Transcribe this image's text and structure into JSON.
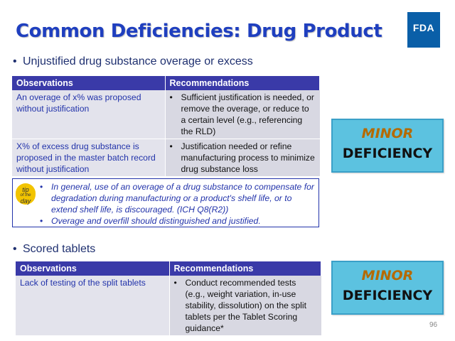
{
  "title": "Common Deficiencies: Drug Product",
  "logo": "FDA",
  "section1": {
    "bullet": "Unjustified drug substance overage or excess",
    "headers": [
      "Observations",
      "Recommendations"
    ],
    "rows": [
      {
        "observation": "An overage of x% was proposed without justification",
        "recommendation": "Sufficient justification is needed, or remove the overage, or reduce to a certain level (e.g., referencing the RLD)"
      },
      {
        "observation": "X% of excess drug substance is proposed in the master batch record without justification",
        "recommendation": "Justification needed or refine manufacturing process to minimize drug substance loss"
      }
    ],
    "badge": {
      "line1": "MINOR",
      "line2": "DEFICIENCY"
    }
  },
  "tip": {
    "badge_line1": "tip",
    "badge_line2": "of the",
    "badge_line3": "day",
    "items": [
      "In general, use of an overage of a drug substance to compensate for degradation during manufacturing or a product's shelf life, or to extend shelf life, is discouraged. (ICH Q8(R2))",
      "Overage and overfill should distinguished and justified."
    ]
  },
  "section2": {
    "bullet": "Scored tablets",
    "headers": [
      "Observations",
      "Recommendations"
    ],
    "rows": [
      {
        "observation": "Lack of testing of the split tablets",
        "recommendation": "Conduct recommended tests (e.g., weight variation, in-use stability, dissolution) on the split tablets per the Tablet Scoring guidance*"
      }
    ],
    "badge": {
      "line1": "MINOR",
      "line2": "DEFICIENCY"
    }
  },
  "page_number": "96",
  "colors": {
    "title": "#1f3fbf",
    "header_bg": "#3a3aa8",
    "badge_bg": "#5cc2e0",
    "badge_minor": "#b56a00",
    "fda_blue": "#0a5fa8"
  }
}
